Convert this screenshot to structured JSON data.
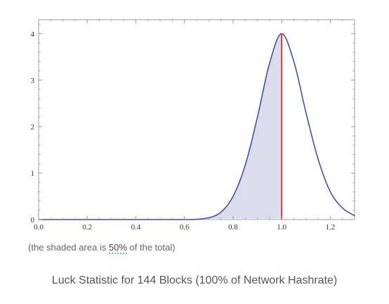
{
  "chart_data": {
    "type": "area",
    "xlim": [
      0,
      1.3
    ],
    "ylim": [
      0,
      4.3
    ],
    "x_ticks": [
      "0.0",
      "0.2",
      "0.4",
      "0.6",
      "0.8",
      "1.0",
      "1.2"
    ],
    "y_ticks": [
      "0",
      "1",
      "2",
      "3",
      "4"
    ],
    "curve": {
      "x": [
        0.0,
        0.6,
        0.7,
        0.75,
        0.8,
        0.85,
        0.9,
        0.95,
        1.0,
        1.05,
        1.1,
        1.15,
        1.2,
        1.25,
        1.3
      ],
      "y": [
        0.0,
        0.0,
        0.04,
        0.16,
        0.5,
        1.17,
        2.2,
        3.36,
        4.0,
        3.4,
        2.3,
        1.3,
        0.6,
        0.25,
        0.08
      ]
    },
    "shaded_until_x": 1.0,
    "marker_x": 1.0,
    "colors": {
      "curve": "#4a4f9c",
      "fill": "#dcdcec",
      "marker": "#e8303a",
      "frame": "#9a9a9a"
    }
  },
  "note": {
    "before": "(the shaded area is ",
    "pct": "50%",
    "after": " of the total)"
  },
  "caption": "Luck Statistic for 144 Blocks (100% of Network Hashrate)"
}
